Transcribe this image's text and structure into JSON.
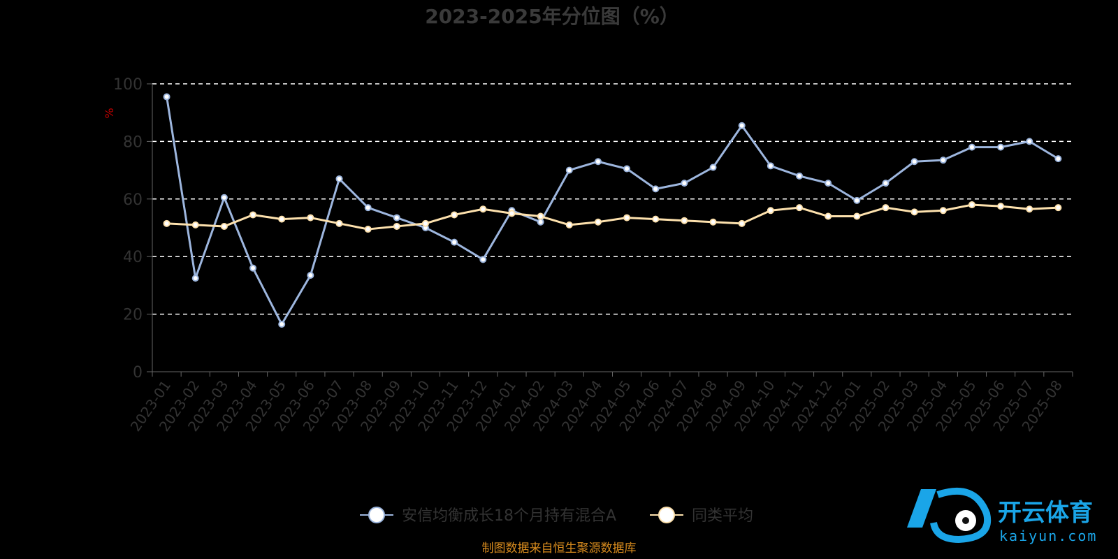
{
  "chart_data": {
    "type": "line",
    "title": "2023-2025年分位图（%）",
    "ylabel": "%",
    "xlabel": "",
    "ylim": [
      0,
      100
    ],
    "yticks": [
      0,
      20,
      40,
      60,
      80,
      100
    ],
    "grid": "horizontal dashed",
    "legend_position": "bottom-center",
    "categories": [
      "2023-01",
      "2023-02",
      "2023-03",
      "2023-04",
      "2023-05",
      "2023-06",
      "2023-07",
      "2023-08",
      "2023-09",
      "2023-10",
      "2023-11",
      "2023-12",
      "2024-01",
      "2024-02",
      "2024-03",
      "2024-04",
      "2024-05",
      "2024-06",
      "2024-07",
      "2024-08",
      "2024-09",
      "2024-10",
      "2024-11",
      "2024-12",
      "2025-01",
      "2025-02",
      "2025-03",
      "2025-04",
      "2025-05",
      "2025-06",
      "2025-07",
      "2025-08"
    ],
    "series": [
      {
        "name": "安信均衡成长18个月持有混合A",
        "color": "#9db6de",
        "values": [
          95.5,
          32.5,
          60.5,
          36,
          16.5,
          33.5,
          67,
          57,
          53.5,
          50,
          45,
          39,
          56,
          52,
          70,
          73,
          70.5,
          63.5,
          65.5,
          71,
          85.5,
          71.5,
          68,
          65.5,
          59.5,
          65.5,
          73,
          73.5,
          78,
          78,
          80,
          74
        ]
      },
      {
        "name": "同类平均",
        "color": "#fde1ad",
        "values": [
          51.5,
          51,
          50.5,
          54.5,
          53,
          53.5,
          51.5,
          49.5,
          50.5,
          51.5,
          54.5,
          56.5,
          55,
          54,
          51,
          52,
          53.5,
          53,
          52.5,
          52,
          51.5,
          56,
          57,
          54,
          54,
          57,
          55.5,
          56,
          58,
          57.5,
          56.5,
          57
        ]
      }
    ]
  },
  "source_note": "制图数据来自恒生聚源数据库",
  "watermark": {
    "brand": "开云体育",
    "domain": "kaiyun.com"
  }
}
